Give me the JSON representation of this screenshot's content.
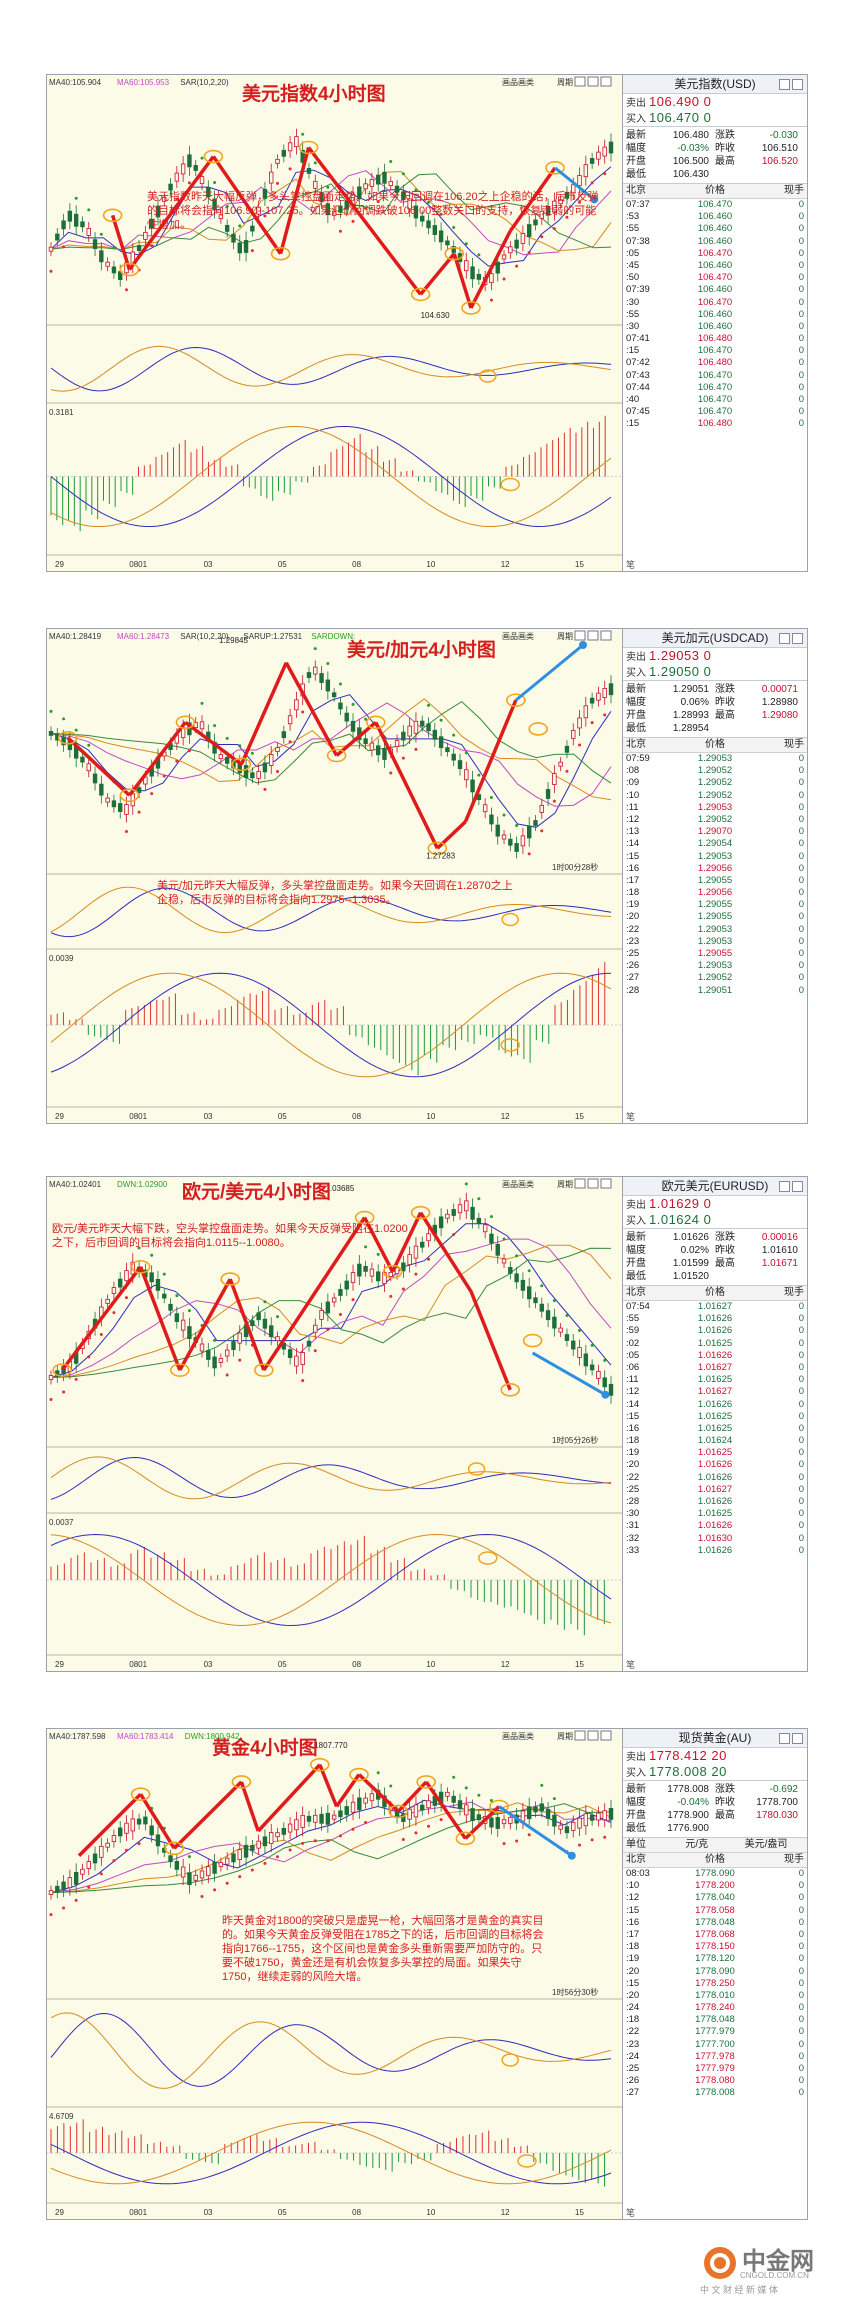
{
  "colors": {
    "up": "#1d6f3a",
    "down": "#c8102e",
    "annotation": "#d41f1f",
    "arrow": "#2e8fe0",
    "highlight": "#f2a51a"
  },
  "panels": [
    {
      "id": "dxy",
      "title": "美元指数4小时图",
      "indicators": {
        "ma40": "MA40:105.904",
        "ma60": "MA60:105.953",
        "sar": "SAR(10,2,20)"
      },
      "toolbar": [
        "画品画类",
        "周期"
      ],
      "annotation": "美元指数昨天大幅反弹，多头掌控盘面走势。如果今天回调在106.20之上企稳的话，后市反弹的目标将会指向106.90--107.25。如果汇价回调跌破106.00整数关口的支持，恢复走弱的可能性增加。",
      "price_labels": [
        "104.630"
      ],
      "macd_label": "0.3181",
      "xaxis": [
        "29",
        "0801",
        "03",
        "05",
        "08",
        "10",
        "12",
        "15"
      ],
      "quote": {
        "title": "美元指数(USD)",
        "sell_label": "卖出",
        "sell": "106.490",
        "sell_vol": "0",
        "buy_label": "买入",
        "buy": "106.470",
        "buy_vol": "0",
        "stats": [
          [
            [
              "最新",
              "106.480"
            ],
            [
              "涨跌",
              "-0.030"
            ]
          ],
          [
            [
              "幅度",
              "-0.03%"
            ],
            [
              "昨收",
              "106.510"
            ]
          ],
          [
            [
              "开盘",
              "106.500"
            ],
            [
              "最高",
              "106.520"
            ]
          ],
          [
            [
              "最低",
              "106.430"
            ],
            [
              "",
              ""
            ]
          ]
        ],
        "head": [
          "北京",
          "价格",
          "现手"
        ],
        "ticks": [
          [
            "07:37",
            "106.470",
            "0"
          ],
          [
            ":53",
            "106.460",
            "0"
          ],
          [
            ":55",
            "106.460",
            "0"
          ],
          [
            "07:38",
            "106.460",
            "0"
          ],
          [
            ":05",
            "106.470",
            "0"
          ],
          [
            ":45",
            "106.460",
            "0"
          ],
          [
            ":50",
            "106.470",
            "0"
          ],
          [
            "07:39",
            "106.460",
            "0"
          ],
          [
            ":30",
            "106.470",
            "0"
          ],
          [
            ":55",
            "106.460",
            "0"
          ],
          [
            ":30",
            "106.460",
            "0"
          ],
          [
            "07:41",
            "106.480",
            "0"
          ],
          [
            ":15",
            "106.470",
            "0"
          ],
          [
            "07:42",
            "106.480",
            "0"
          ],
          [
            "07:43",
            "106.470",
            "0"
          ],
          [
            "07:44",
            "106.470",
            "0"
          ],
          [
            ":40",
            "106.470",
            "0"
          ],
          [
            "07:45",
            "106.470",
            "0"
          ],
          [
            ":15",
            "106.480",
            "0"
          ]
        ],
        "footer": "笔"
      }
    },
    {
      "id": "usdcad",
      "title": "美元/加元4小时图",
      "indicators": {
        "ma40": "MA40:1.28419",
        "ma60": "MA60:1.28473",
        "sar": "SAR(10,2,20)",
        "sarup": "SARUP:1.27531",
        "sardown": "SARDOWN:"
      },
      "toolbar": [
        "画品画类",
        "周期"
      ],
      "annotation": "美元/加元昨天大幅反弹，多头掌控盘面走势。如果今天回调在1.2870之上企稳，后市反弹的目标将会指向1.2975--1.3035。",
      "price_labels": [
        "1.29845",
        "1.27283"
      ],
      "timer": "1时00分28秒",
      "macd_label": "0.0039",
      "xaxis": [
        "29",
        "0801",
        "03",
        "05",
        "08",
        "10",
        "12",
        "15"
      ],
      "quote": {
        "title": "美元加元(USDCAD)",
        "sell_label": "卖出",
        "sell": "1.29053",
        "sell_vol": "0",
        "buy_label": "买入",
        "buy": "1.29050",
        "buy_vol": "0",
        "stats": [
          [
            [
              "最新",
              "1.29051"
            ],
            [
              "涨跌",
              "0.00071"
            ]
          ],
          [
            [
              "幅度",
              "0.06%"
            ],
            [
              "昨收",
              "1.28980"
            ]
          ],
          [
            [
              "开盘",
              "1.28993"
            ],
            [
              "最高",
              "1.29080"
            ]
          ],
          [
            [
              "最低",
              "1.28954"
            ],
            [
              "",
              ""
            ]
          ]
        ],
        "head": [
          "北京",
          "价格",
          "现手"
        ],
        "ticks": [
          [
            "07:59",
            "1.29053",
            "0"
          ],
          [
            ":08",
            "1.29052",
            "0"
          ],
          [
            ":09",
            "1.29052",
            "0"
          ],
          [
            ":10",
            "1.29052",
            "0"
          ],
          [
            ":11",
            "1.29053",
            "0"
          ],
          [
            ":12",
            "1.29052",
            "0"
          ],
          [
            ":13",
            "1.29070",
            "0"
          ],
          [
            ":14",
            "1.29054",
            "0"
          ],
          [
            ":15",
            "1.29053",
            "0"
          ],
          [
            ":16",
            "1.29056",
            "0"
          ],
          [
            ":17",
            "1.29055",
            "0"
          ],
          [
            ":18",
            "1.29056",
            "0"
          ],
          [
            ":19",
            "1.29055",
            "0"
          ],
          [
            ":20",
            "1.29055",
            "0"
          ],
          [
            ":22",
            "1.29053",
            "0"
          ],
          [
            ":23",
            "1.29053",
            "0"
          ],
          [
            ":25",
            "1.29055",
            "0"
          ],
          [
            ":26",
            "1.29053",
            "0"
          ],
          [
            ":27",
            "1.29052",
            "0"
          ],
          [
            ":28",
            "1.29051",
            "0"
          ]
        ],
        "footer": "笔"
      }
    },
    {
      "id": "eurusd",
      "title": "欧元/美元4小时图",
      "indicators": {
        "ma40": "MA40:1.02401",
        "sardown": "DWN:1.02900"
      },
      "toolbar": [
        "画品画类",
        "周期"
      ],
      "annotation": "欧元/美元昨天大幅下跌，空头掌控盘面走势。如果今天反弹受阻在1.0200之下，后市回调的目标将会指向1.0115--1.0080。",
      "price_labels": [
        "1.03685"
      ],
      "timer": "1时05分26秒",
      "macd_label": "0.0037",
      "xaxis": [
        "29",
        "0801",
        "03",
        "05",
        "08",
        "10",
        "12",
        "15"
      ],
      "quote": {
        "title": "欧元美元(EURUSD)",
        "sell_label": "卖出",
        "sell": "1.01629",
        "sell_vol": "0",
        "buy_label": "买入",
        "buy": "1.01624",
        "buy_vol": "0",
        "stats": [
          [
            [
              "最新",
              "1.01626"
            ],
            [
              "涨跌",
              "0.00016"
            ]
          ],
          [
            [
              "幅度",
              "0.02%"
            ],
            [
              "昨收",
              "1.01610"
            ]
          ],
          [
            [
              "开盘",
              "1.01599"
            ],
            [
              "最高",
              "1.01671"
            ]
          ],
          [
            [
              "最低",
              "1.01520"
            ],
            [
              "",
              ""
            ]
          ]
        ],
        "head": [
          "北京",
          "价格",
          "现手"
        ],
        "ticks": [
          [
            "07:54",
            "1.01627",
            "0"
          ],
          [
            ":55",
            "1.01626",
            "0"
          ],
          [
            ":59",
            "1.01626",
            "0"
          ],
          [
            ":02",
            "1.01625",
            "0"
          ],
          [
            ":05",
            "1.01626",
            "0"
          ],
          [
            ":06",
            "1.01627",
            "0"
          ],
          [
            ":11",
            "1.01625",
            "0"
          ],
          [
            ":12",
            "1.01627",
            "0"
          ],
          [
            ":14",
            "1.01626",
            "0"
          ],
          [
            ":15",
            "1.01625",
            "0"
          ],
          [
            ":16",
            "1.01625",
            "0"
          ],
          [
            ":18",
            "1.01624",
            "0"
          ],
          [
            ":19",
            "1.01625",
            "0"
          ],
          [
            ":20",
            "1.01626",
            "0"
          ],
          [
            ":22",
            "1.01626",
            "0"
          ],
          [
            ":25",
            "1.01627",
            "0"
          ],
          [
            ":28",
            "1.01626",
            "0"
          ],
          [
            ":30",
            "1.01625",
            "0"
          ],
          [
            ":31",
            "1.01626",
            "0"
          ],
          [
            ":32",
            "1.01630",
            "0"
          ],
          [
            ":33",
            "1.01626",
            "0"
          ]
        ],
        "footer": "笔"
      }
    },
    {
      "id": "gold",
      "title": "黄金4小时图",
      "indicators": {
        "ma40": "MA40:1787.598",
        "ma60": "MA60:1783.414",
        "sardown": "DWN:1800.942"
      },
      "toolbar": [
        "画品画类",
        "周期"
      ],
      "annotation": "昨天黄金对1800的突破只是虚晃一枪，大幅回落才是黄金的真实目的。如果今天黄金反弹受阻在1785之下的话，后市回调的目标将会指向1766--1755，这个区间也是黄金多头重新需要严加防守的。只要不破1750，黄金还是有机会恢复多头掌控的局面。如果失守1750，继续走弱的风险大增。",
      "price_labels": [
        "1807.770"
      ],
      "timer": "1时56分30秒",
      "macd_label": "4.6709",
      "xaxis": [
        "29",
        "0801",
        "03",
        "05",
        "08",
        "10",
        "12",
        "15"
      ],
      "quote": {
        "title": "现货黄金(AU)",
        "sell_label": "卖出",
        "sell": "1778.412",
        "sell_vol": "20",
        "buy_label": "买入",
        "buy": "1778.008",
        "buy_vol": "20",
        "stats": [
          [
            [
              "最新",
              "1778.008"
            ],
            [
              "涨跌",
              "-0.692"
            ]
          ],
          [
            [
              "幅度",
              "-0.04%"
            ],
            [
              "昨收",
              "1778.700"
            ]
          ],
          [
            [
              "开盘",
              "1778.900"
            ],
            [
              "最高",
              "1780.030"
            ]
          ],
          [
            [
              "最低",
              "1776.900"
            ],
            [
              "",
              ""
            ]
          ]
        ],
        "unit_row": [
          "单位",
          "元/克",
          "美元/盎司"
        ],
        "head": [
          "北京",
          "价格",
          "现手"
        ],
        "ticks": [
          [
            "08:03",
            "1778.090",
            "0"
          ],
          [
            ":10",
            "1778.200",
            "0"
          ],
          [
            ":12",
            "1778.040",
            "0"
          ],
          [
            ":15",
            "1778.058",
            "0"
          ],
          [
            ":16",
            "1778.048",
            "0"
          ],
          [
            ":17",
            "1778.068",
            "0"
          ],
          [
            ":18",
            "1778.150",
            "0"
          ],
          [
            ":19",
            "1778.120",
            "0"
          ],
          [
            ":20",
            "1778.090",
            "0"
          ],
          [
            ":15",
            "1778.250",
            "0"
          ],
          [
            ":20",
            "1778.010",
            "0"
          ],
          [
            ":24",
            "1778.240",
            "0"
          ],
          [
            ":18",
            "1778.048",
            "0"
          ],
          [
            ":22",
            "1777.979",
            "0"
          ],
          [
            ":23",
            "1777.700",
            "0"
          ],
          [
            ":24",
            "1777.978",
            "0"
          ],
          [
            ":25",
            "1777.979",
            "0"
          ],
          [
            ":26",
            "1778.080",
            "0"
          ],
          [
            ":27",
            "1778.008",
            "0"
          ]
        ],
        "footer": "笔"
      }
    }
  ],
  "watermark": {
    "brand": "中金网",
    "site": "CNGOLD.COM.CN",
    "slogan": "中 文 财 经 新 媒 体"
  }
}
